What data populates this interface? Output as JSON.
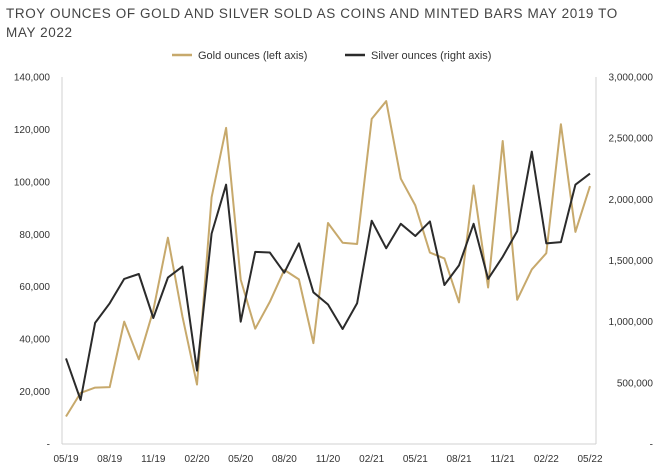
{
  "chart_data": {
    "type": "line",
    "title": "TROY OUNCES OF GOLD AND SILVER SOLD AS COINS AND MINTED BARS MAY 2019 TO MAY 2022",
    "x_tick_labels": [
      "05/19",
      "08/19",
      "11/19",
      "02/20",
      "05/20",
      "08/20",
      "11/20",
      "02/21",
      "05/21",
      "08/21",
      "11/21",
      "02/22",
      "05/22"
    ],
    "y_left": {
      "ticks": [
        "-",
        "20,000",
        "40,000",
        "60,000",
        "80,000",
        "100,000",
        "120,000",
        "140,000"
      ],
      "range": [
        0,
        140000
      ]
    },
    "y_right": {
      "ticks": [
        "-",
        "500,000",
        "1,000,000",
        "1,500,000",
        "2,000,000",
        "2,500,000",
        "3,000,000"
      ],
      "range": [
        0,
        3000000
      ]
    },
    "legend_position": "top-center",
    "grid": false,
    "series": [
      {
        "name": "Gold ounces (left axis)",
        "axis": "left",
        "color": "#c7a96c",
        "values": [
          10500,
          19500,
          21500,
          21700,
          46700,
          32300,
          51000,
          78700,
          48700,
          22700,
          94100,
          120600,
          62700,
          44000,
          54200,
          66400,
          62800,
          38500,
          84300,
          76800,
          76300,
          124000,
          130800,
          101200,
          91000,
          73000,
          70800,
          54000,
          98600,
          59700,
          115600,
          55000,
          66600,
          72800,
          122000,
          80900,
          98400
        ]
      },
      {
        "name": "Silver ounces (right axis)",
        "axis": "right",
        "color": "#2b2b2b",
        "values": [
          700000,
          360000,
          990000,
          1150000,
          1350000,
          1390000,
          1030000,
          1360000,
          1450000,
          600000,
          1720000,
          2120000,
          1000000,
          1570000,
          1565000,
          1400000,
          1640000,
          1240000,
          1140000,
          940000,
          1150000,
          1825000,
          1600000,
          1800000,
          1700000,
          1820000,
          1300000,
          1460000,
          1800000,
          1350000,
          1530000,
          1740000,
          2390000,
          1640000,
          1650000,
          2120000,
          2210000
        ]
      }
    ]
  }
}
